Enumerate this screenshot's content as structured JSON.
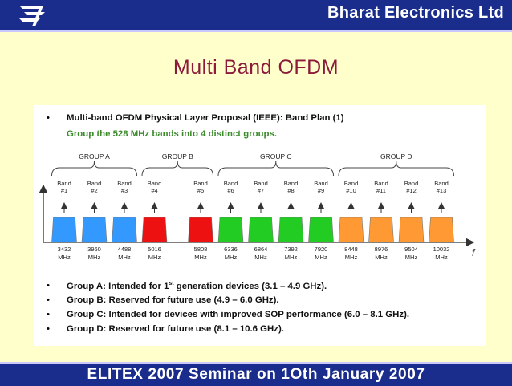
{
  "header": {
    "company": "Bharat Electronics Ltd",
    "logo_icon": "bel-logo-icon"
  },
  "title": "Multi Band OFDM",
  "proposal_heading": "Multi-band OFDM Physical Layer Proposal (IEEE): Band Plan (1)",
  "subheading": "Group the 528 MHz bands into 4 distinct groups.",
  "groups": [
    {
      "label": "GROUP A",
      "color": "#3399ff"
    },
    {
      "label": "GROUP B",
      "color": "#ee1111"
    },
    {
      "label": "GROUP C",
      "color": "#22cc22"
    },
    {
      "label": "GROUP D",
      "color": "#ff9933"
    }
  ],
  "bands": [
    {
      "label": "Band",
      "num": "#1",
      "freq": "3432",
      "unit": "MHz",
      "group": 0
    },
    {
      "label": "Band",
      "num": "#2",
      "freq": "3960",
      "unit": "MHz",
      "group": 0
    },
    {
      "label": "Band",
      "num": "#3",
      "freq": "4488",
      "unit": "MHz",
      "group": 0
    },
    {
      "label": "Band",
      "num": "#4",
      "freq": "5016",
      "unit": "MHz",
      "group": 1
    },
    {
      "label": "Band",
      "num": "#5",
      "freq": "5808",
      "unit": "MHz",
      "group": 1
    },
    {
      "label": "Band",
      "num": "#6",
      "freq": "6336",
      "unit": "MHz",
      "group": 2
    },
    {
      "label": "Band",
      "num": "#7",
      "freq": "6864",
      "unit": "MHz",
      "group": 2
    },
    {
      "label": "Band",
      "num": "#8",
      "freq": "7392",
      "unit": "MHz",
      "group": 2
    },
    {
      "label": "Band",
      "num": "#9",
      "freq": "7920",
      "unit": "MHz",
      "group": 2
    },
    {
      "label": "Band",
      "num": "#10",
      "freq": "8448",
      "unit": "MHz",
      "group": 3
    },
    {
      "label": "Band",
      "num": "#11",
      "freq": "8976",
      "unit": "MHz",
      "group": 3
    },
    {
      "label": "Band",
      "num": "#12",
      "freq": "9504",
      "unit": "MHz",
      "group": 3
    },
    {
      "label": "Band",
      "num": "#13",
      "freq": "10032",
      "unit": "MHz",
      "group": 3
    }
  ],
  "axis_label": "f",
  "group_notes": [
    {
      "pre": "Group A: Intended for 1",
      "sup": "st",
      "post": " generation devices (3.1 – 4.9 GHz)."
    },
    {
      "pre": "Group B: Reserved for future use (4.9 – 6.0 GHz).",
      "sup": "",
      "post": ""
    },
    {
      "pre": "Group C: Intended for devices with improved SOP performance (6.0 – 8.1 GHz).",
      "sup": "",
      "post": ""
    },
    {
      "pre": "Group D: Reserved for future use (8.1 – 10.6 GHz).",
      "sup": "",
      "post": ""
    }
  ],
  "footer": "ELITEX 2007 Seminar on 1Oth January 2007"
}
